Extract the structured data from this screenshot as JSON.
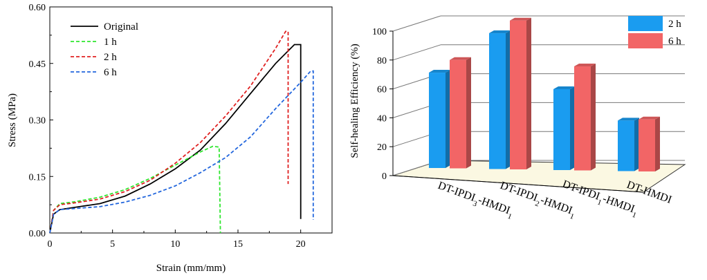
{
  "chart_data": [
    {
      "type": "line",
      "xlabel": "Strain (mm/mm)",
      "ylabel": "Stress (MPa)",
      "xlim": [
        0,
        22.5
      ],
      "ylim": [
        0,
        0.6
      ],
      "xticks": [
        "0",
        "5",
        "10",
        "15",
        "20"
      ],
      "yticks": [
        "0.00",
        "0.15",
        "0.30",
        "0.45",
        "0.60"
      ],
      "legend_position": "top-left",
      "series": [
        {
          "name": "Original",
          "color": "#000000",
          "dash": "solid",
          "x": [
            0,
            0.3,
            0.8,
            2,
            4,
            6,
            8,
            10,
            12,
            14,
            16,
            18,
            19.5,
            20.0,
            20.0
          ],
          "y": [
            0,
            0.05,
            0.062,
            0.068,
            0.078,
            0.098,
            0.13,
            0.17,
            0.22,
            0.29,
            0.37,
            0.45,
            0.5,
            0.5,
            0.037
          ]
        },
        {
          "name": "1 h",
          "color": "#2ee62e",
          "dash": "dashed",
          "x": [
            0,
            0.3,
            0.8,
            2,
            4,
            6,
            8,
            10,
            12,
            13.0,
            13.5,
            13.6
          ],
          "y": [
            0,
            0.06,
            0.078,
            0.083,
            0.095,
            0.115,
            0.145,
            0.18,
            0.215,
            0.23,
            0.228,
            0.0
          ]
        },
        {
          "name": "2 h",
          "color": "#e02020",
          "dash": "dashed",
          "x": [
            0,
            0.3,
            0.8,
            2,
            4,
            6,
            8,
            10,
            12,
            14,
            16,
            18,
            18.8,
            19.0,
            19.0
          ],
          "y": [
            0,
            0.06,
            0.075,
            0.08,
            0.09,
            0.11,
            0.14,
            0.185,
            0.24,
            0.31,
            0.39,
            0.49,
            0.535,
            0.535,
            0.13
          ]
        },
        {
          "name": "6 h",
          "color": "#2266dd",
          "dash": "dashed",
          "x": [
            0,
            0.3,
            0.8,
            2,
            4,
            6,
            8,
            10,
            12,
            14,
            16,
            18,
            20,
            20.8,
            21.0,
            21.0
          ],
          "y": [
            0,
            0.05,
            0.062,
            0.065,
            0.07,
            0.082,
            0.1,
            0.125,
            0.16,
            0.2,
            0.255,
            0.33,
            0.4,
            0.43,
            0.43,
            0.035
          ]
        }
      ]
    },
    {
      "type": "bar",
      "ylabel": "Self-healing Efficiency (%)",
      "ylim": [
        0,
        100
      ],
      "yticks": [
        "0",
        "20",
        "40",
        "60",
        "80",
        "100"
      ],
      "categories": [
        "DT-IPDI3-HMDI1",
        "DT-IPDI2-HMDI1",
        "DT-IPDI1-HMDI1",
        "DT-HMDI"
      ],
      "category_labels": [
        {
          "base": "DT-IPDI",
          "sub1": "3",
          "mid": "-HMDI",
          "sub2": "1"
        },
        {
          "base": "DT-IPDI",
          "sub1": "2",
          "mid": "-HMDI",
          "sub2": "1"
        },
        {
          "base": "DT-IPDI",
          "sub1": "1",
          "mid": "-HMDI",
          "sub2": "1"
        },
        {
          "base": "DT-HMDI",
          "sub1": "",
          "mid": "",
          "sub2": ""
        }
      ],
      "legend_position": "top-right",
      "series": [
        {
          "name": "2 h",
          "color": "#1a9cf0",
          "values": [
            66,
            94,
            56,
            35
          ]
        },
        {
          "name": "6 h",
          "color": "#f26566",
          "values": [
            75,
            103,
            72,
            36
          ]
        }
      ]
    }
  ]
}
